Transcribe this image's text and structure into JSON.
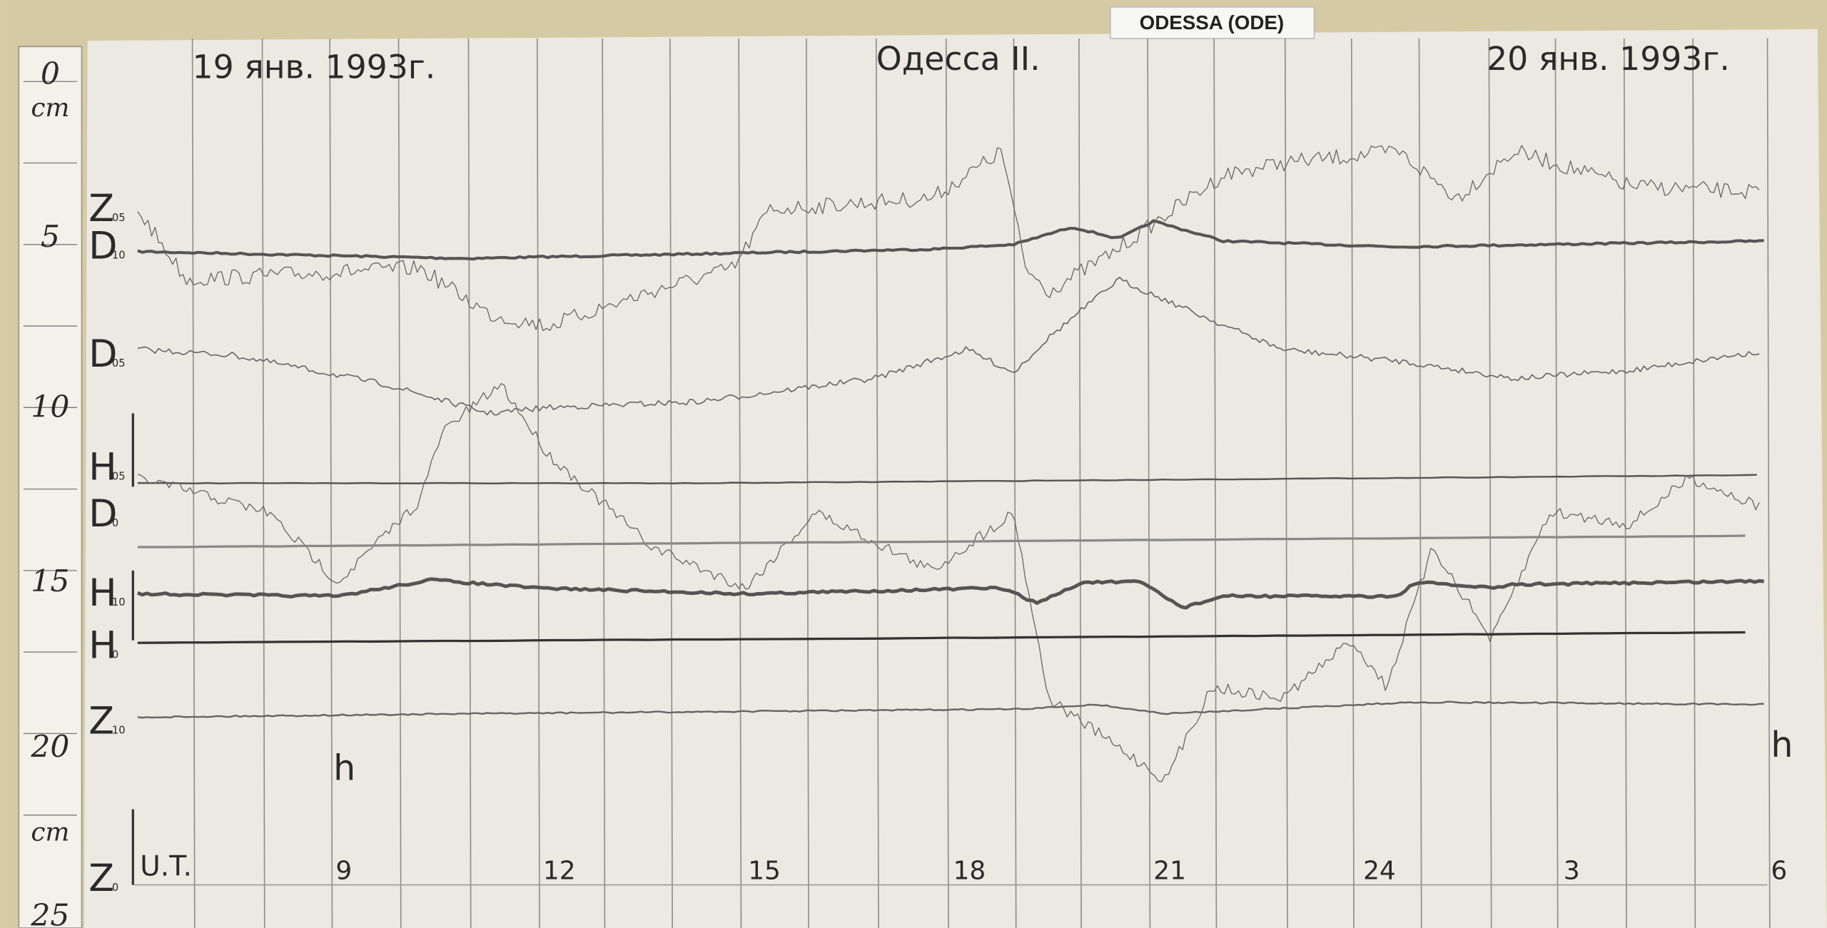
{
  "station_tag": "ODESSA (ODE)",
  "header": {
    "left_date": "19 янв. 1993г.",
    "station": "Одесса II.",
    "right_date": "20 янв. 1993г."
  },
  "ruler": {
    "labels": [
      "0",
      "cm",
      "5",
      "10",
      "15",
      "20",
      "cm",
      "25"
    ]
  },
  "traces": [
    {
      "letter": "Z",
      "sub": "05"
    },
    {
      "letter": "D",
      "sub": "10"
    },
    {
      "letter": "D",
      "sub": "05"
    },
    {
      "letter": "H",
      "sub": "05"
    },
    {
      "letter": "D",
      "sub": "0"
    },
    {
      "letter": "H",
      "sub": "10"
    },
    {
      "letter": "H",
      "sub": "0"
    },
    {
      "letter": "Z",
      "sub": "10"
    },
    {
      "letter": "Z",
      "sub": "0"
    }
  ],
  "time_axis": {
    "unit_left": "h",
    "unit_right": "h",
    "ut": "U.T.",
    "hours": [
      "9",
      "12",
      "15",
      "18",
      "21",
      "24",
      "3",
      "6"
    ]
  }
}
